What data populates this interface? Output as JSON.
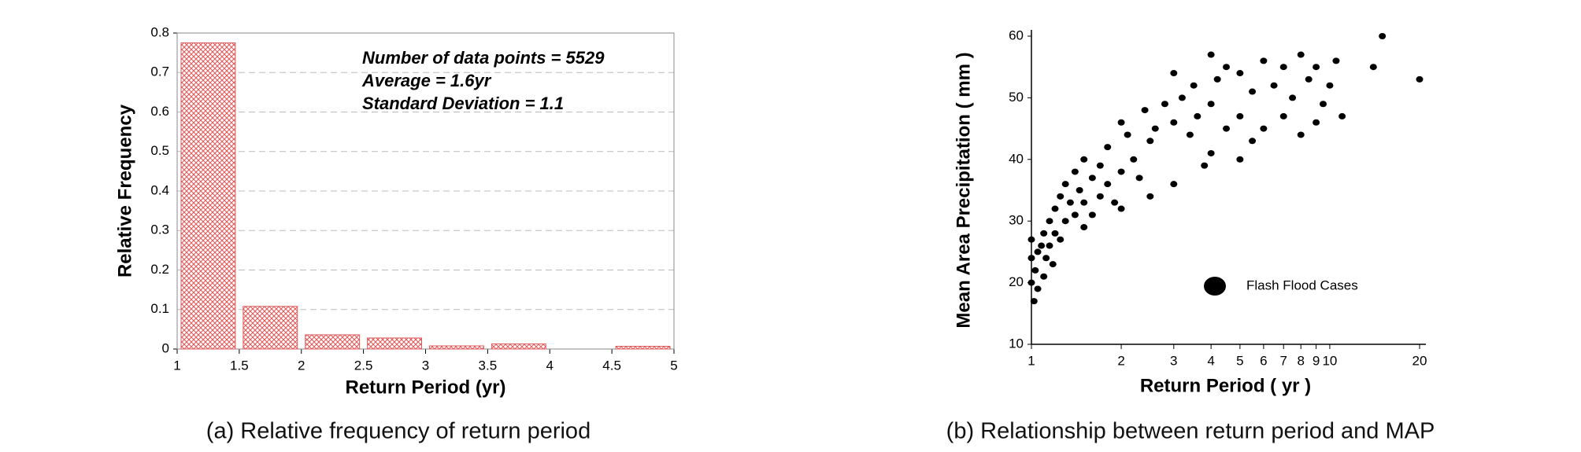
{
  "chart_data": [
    {
      "type": "histogram",
      "xlabel": "Return Period (yr)",
      "ylabel": "Relative Frequency",
      "caption": "(a) Relative frequency of return period",
      "annotations": [
        "Number of data points = 5529",
        "Average = 1.6yr",
        "Standard Deviation = 1.1"
      ],
      "bins": [
        1,
        1.5,
        2,
        2.5,
        3,
        3.5,
        4,
        4.5,
        5
      ],
      "values": [
        0.775,
        0.108,
        0.036,
        0.028,
        0.008,
        0.013,
        0,
        0.007
      ],
      "color": "#e05a5a",
      "xlim": [
        1,
        5
      ],
      "xticks": [
        1,
        1.5,
        2,
        2.5,
        3,
        3.5,
        4,
        4.5,
        5
      ],
      "ylim": [
        0,
        0.8
      ],
      "yticks": [
        0,
        0.1,
        0.2,
        0.3,
        0.4,
        0.5,
        0.6,
        0.7,
        0.8
      ],
      "grid": true
    },
    {
      "type": "scatter",
      "xlabel": "Return Period ( yr )",
      "ylabel": "Mean Area Precipitation ( mm )",
      "caption": "(b) Relationship between return period and MAP",
      "xscale": "log",
      "legend": "lower right",
      "grid": false,
      "xlim": [
        1,
        20
      ],
      "xticks": [
        1,
        2,
        3,
        4,
        5,
        6,
        7,
        8,
        9,
        10,
        20
      ],
      "ylim": [
        10,
        60
      ],
      "yticks": [
        10,
        20,
        30,
        40,
        50,
        60
      ],
      "series": [
        {
          "name": "Flash Flood Cases",
          "color": "#000000",
          "x": [
            1.0,
            1.0,
            1.0,
            1.02,
            1.03,
            1.05,
            1.05,
            1.08,
            1.1,
            1.1,
            1.12,
            1.15,
            1.15,
            1.18,
            1.2,
            1.2,
            1.25,
            1.25,
            1.3,
            1.3,
            1.35,
            1.4,
            1.4,
            1.45,
            1.5,
            1.5,
            1.5,
            1.6,
            1.6,
            1.7,
            1.7,
            1.8,
            1.8,
            1.9,
            2.0,
            2.0,
            2.0,
            2.1,
            2.2,
            2.3,
            2.4,
            2.5,
            2.5,
            2.6,
            2.8,
            3.0,
            3.0,
            3.0,
            3.2,
            3.4,
            3.5,
            3.6,
            3.8,
            4.0,
            4.0,
            4.0,
            4.2,
            4.5,
            4.5,
            5.0,
            5.0,
            5.0,
            5.5,
            5.5,
            6.0,
            6.0,
            6.5,
            7.0,
            7.0,
            7.5,
            8.0,
            8.0,
            8.5,
            9.0,
            9.0,
            9.5,
            10.0,
            10.5,
            11.0,
            14.0,
            15.0,
            20.0
          ],
          "values": [
            20,
            24,
            27,
            17,
            22,
            25,
            19,
            26,
            21,
            28,
            24,
            30,
            26,
            23,
            32,
            28,
            34,
            27,
            36,
            30,
            33,
            38,
            31,
            35,
            40,
            33,
            29,
            37,
            31,
            39,
            34,
            42,
            36,
            33,
            46,
            38,
            32,
            44,
            40,
            37,
            48,
            43,
            34,
            45,
            49,
            54,
            46,
            36,
            50,
            44,
            52,
            47,
            39,
            57,
            49,
            41,
            53,
            55,
            45,
            54,
            47,
            40,
            51,
            43,
            56,
            45,
            52,
            55,
            47,
            50,
            57,
            44,
            53,
            55,
            46,
            49,
            52,
            56,
            47,
            55,
            60,
            53
          ]
        }
      ]
    }
  ]
}
